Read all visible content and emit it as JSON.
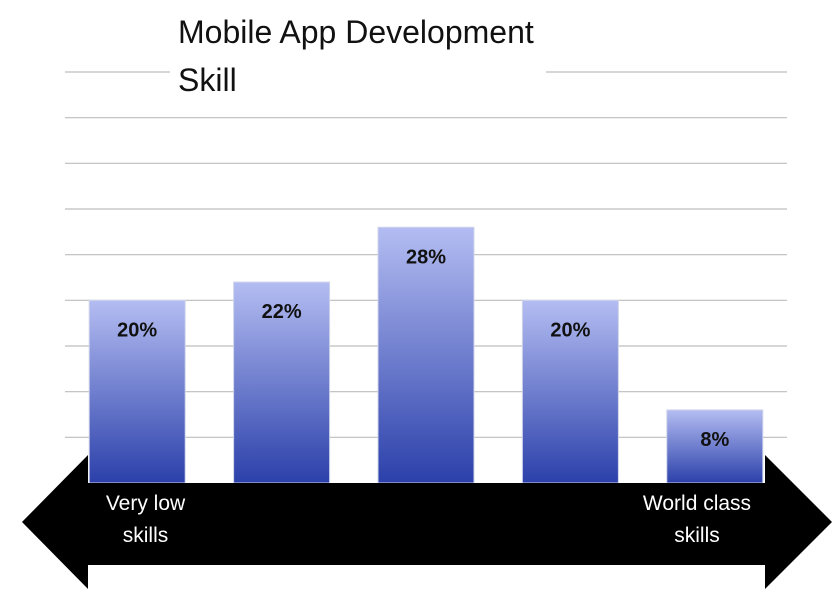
{
  "chart_data": {
    "type": "bar",
    "title": "Mobile App Development Skill",
    "categories": [
      null,
      null,
      null,
      null,
      null
    ],
    "values": [
      20,
      22,
      28,
      20,
      8
    ],
    "value_labels": [
      "20%",
      "22%",
      "28%",
      "20%",
      "8%"
    ],
    "color": "#2b40aa",
    "ylim": [
      0,
      45
    ],
    "yticks": [
      5,
      10,
      15,
      20,
      25,
      30,
      35,
      40,
      45
    ],
    "grid": true,
    "annotations": [
      "Very low skills",
      "World class skills"
    ]
  }
}
